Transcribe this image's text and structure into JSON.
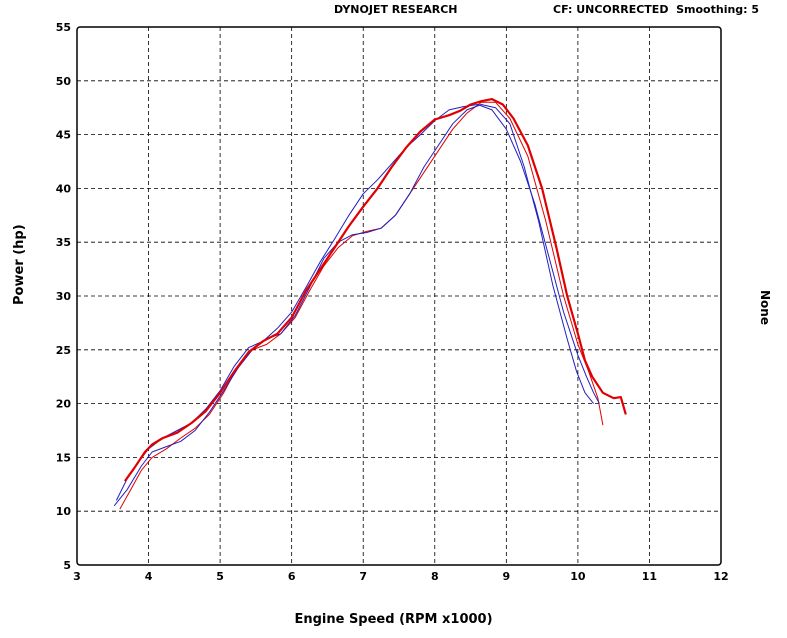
{
  "header": {
    "left": "DYNOJET RESEARCH",
    "right": "CF: UNCORRECTED  Smoothing: 5"
  },
  "chart_data": {
    "type": "line",
    "xlabel": "Engine Speed (RPM x1000)",
    "ylabel": "Power (hp)",
    "y2label": "None",
    "xlim": [
      3,
      12
    ],
    "ylim": [
      5,
      55
    ],
    "xticks": [
      3,
      4,
      5,
      6,
      7,
      8,
      9,
      10,
      11,
      12
    ],
    "yticks": [
      5,
      10,
      15,
      20,
      25,
      30,
      35,
      40,
      45,
      50,
      55
    ],
    "grid": true,
    "series": [
      {
        "color": "#e00000",
        "width": 2.2,
        "x": [
          3.67,
          3.8,
          3.95,
          4.05,
          4.2,
          4.4,
          4.6,
          4.8,
          5.0,
          5.2,
          5.4,
          5.6,
          5.8,
          6.0,
          6.2,
          6.4,
          6.6,
          6.8,
          7.0,
          7.2,
          7.4,
          7.6,
          7.8,
          8.0,
          8.2,
          8.35,
          8.5,
          8.65,
          8.8,
          8.95,
          9.1,
          9.3,
          9.5,
          9.7,
          9.85,
          10.0,
          10.1,
          10.2,
          10.35,
          10.5,
          10.6,
          10.67
        ],
        "y": [
          12.8,
          14.0,
          15.5,
          16.2,
          16.8,
          17.3,
          18.2,
          19.3,
          21.0,
          23.0,
          24.8,
          25.8,
          26.5,
          28.0,
          30.5,
          32.5,
          34.5,
          36.5,
          38.3,
          40.0,
          42.0,
          43.8,
          45.3,
          46.4,
          46.8,
          47.2,
          47.8,
          48.1,
          48.3,
          47.8,
          46.5,
          44.0,
          40.0,
          34.5,
          30.0,
          26.5,
          24.0,
          22.5,
          21.0,
          20.5,
          20.6,
          19.0
        ]
      },
      {
        "color": "#e00000",
        "width": 1.0,
        "x": [
          3.6,
          3.75,
          3.9,
          4.05,
          4.25,
          4.45,
          4.65,
          4.85,
          5.05,
          5.25,
          5.45,
          5.65,
          5.85,
          6.05,
          6.25,
          6.45,
          6.65,
          6.85,
          7.05,
          7.25,
          7.45,
          7.65,
          7.85,
          8.05,
          8.25,
          8.45,
          8.65,
          8.85,
          9.05,
          9.3,
          9.55,
          9.8,
          10.0,
          10.15,
          10.28,
          10.35
        ],
        "y": [
          10.2,
          12.0,
          13.8,
          15.0,
          15.8,
          16.8,
          17.7,
          19.0,
          21.0,
          23.5,
          25.0,
          25.5,
          26.5,
          28.0,
          30.5,
          32.8,
          34.5,
          35.6,
          36.0,
          36.3,
          37.5,
          39.5,
          41.5,
          43.5,
          45.5,
          47.0,
          48.0,
          48.0,
          46.5,
          43.0,
          37.0,
          30.0,
          25.5,
          23.0,
          20.5,
          18.0
        ]
      },
      {
        "color": "#2020c0",
        "width": 1.0,
        "x": [
          3.55,
          3.7,
          3.85,
          4.0,
          4.2,
          4.4,
          4.6,
          4.8,
          5.0,
          5.2,
          5.4,
          5.6,
          5.8,
          6.0,
          6.2,
          6.4,
          6.6,
          6.8,
          7.0,
          7.2,
          7.4,
          7.6,
          7.8,
          8.0,
          8.2,
          8.4,
          8.6,
          8.8,
          9.0,
          9.2,
          9.4,
          9.6,
          9.8,
          10.0,
          10.12,
          10.22,
          10.3
        ],
        "y": [
          11.0,
          13.0,
          14.5,
          15.8,
          16.8,
          17.5,
          18.2,
          19.5,
          21.2,
          23.5,
          25.2,
          25.8,
          27.0,
          28.5,
          30.8,
          33.2,
          35.3,
          37.5,
          39.5,
          40.8,
          42.3,
          43.8,
          45.0,
          46.3,
          47.3,
          47.6,
          47.8,
          47.3,
          45.5,
          42.5,
          38.5,
          33.5,
          28.5,
          24.5,
          22.5,
          21.0,
          20.0
        ]
      },
      {
        "color": "#2020c0",
        "width": 1.0,
        "x": [
          3.52,
          3.7,
          3.9,
          4.05,
          4.25,
          4.45,
          4.65,
          4.85,
          5.05,
          5.25,
          5.45,
          5.65,
          5.85,
          6.05,
          6.25,
          6.45,
          6.65,
          6.85,
          7.05,
          7.25,
          7.45,
          7.65,
          7.85,
          8.05,
          8.25,
          8.45,
          8.65,
          8.85,
          9.05,
          9.25,
          9.45,
          9.65,
          9.85,
          9.98,
          10.1,
          10.22
        ],
        "y": [
          10.5,
          12.0,
          14.2,
          15.5,
          16.0,
          16.5,
          17.5,
          19.2,
          21.2,
          23.3,
          25.0,
          26.0,
          26.5,
          28.2,
          30.8,
          33.5,
          35.0,
          35.7,
          35.9,
          36.3,
          37.5,
          39.5,
          42.0,
          44.0,
          46.0,
          47.3,
          47.8,
          47.5,
          46.0,
          42.0,
          37.0,
          31.0,
          26.0,
          23.0,
          21.0,
          20.0
        ]
      }
    ]
  }
}
